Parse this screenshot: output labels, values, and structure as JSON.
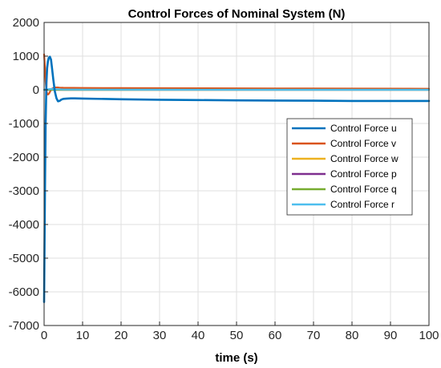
{
  "chart_data": {
    "type": "line",
    "title": "Control Forces of Nominal System (N)",
    "xlabel": "time (s)",
    "ylabel": "",
    "xlim": [
      0,
      100
    ],
    "ylim": [
      -7000,
      2000
    ],
    "xticks": [
      0,
      10,
      20,
      30,
      40,
      50,
      60,
      70,
      80,
      90,
      100
    ],
    "yticks": [
      -7000,
      -6000,
      -5000,
      -4000,
      -3000,
      -2000,
      -1000,
      0,
      1000,
      2000
    ],
    "grid": true,
    "legend_position": "right-center",
    "series": [
      {
        "name": "Control Force u",
        "color": "#0072BD",
        "x": [
          0,
          0.2,
          0.4,
          0.6,
          0.8,
          1.0,
          1.2,
          1.5,
          1.8,
          2.0,
          2.4,
          2.8,
          3.2,
          3.6,
          4.0,
          4.5,
          5.0,
          6.0,
          7.0,
          8.0,
          10,
          20,
          30,
          40,
          50,
          60,
          70,
          80,
          90,
          100
        ],
        "y": [
          -6300,
          -3200,
          -1000,
          200,
          650,
          850,
          950,
          980,
          900,
          700,
          300,
          -50,
          -250,
          -340,
          -330,
          -290,
          -270,
          -260,
          -255,
          -255,
          -260,
          -280,
          -295,
          -305,
          -315,
          -320,
          -325,
          -330,
          -330,
          -330
        ]
      },
      {
        "name": "Control Force v",
        "color": "#D95319",
        "x": [
          0,
          0.2,
          0.4,
          0.6,
          0.8,
          1.0,
          1.3,
          1.6,
          2.0,
          2.5,
          3.0,
          3.5,
          4.0,
          5,
          10,
          20,
          40,
          60,
          80,
          100
        ],
        "y": [
          1050,
          700,
          250,
          -20,
          -110,
          -140,
          -110,
          -40,
          30,
          60,
          70,
          68,
          65,
          60,
          55,
          50,
          45,
          40,
          35,
          30
        ]
      },
      {
        "name": "Control Force w",
        "color": "#EDB120",
        "x": [
          0,
          1,
          2,
          5,
          100
        ],
        "y": [
          0,
          10,
          5,
          0,
          0
        ]
      },
      {
        "name": "Control Force p",
        "color": "#7E2F8E",
        "x": [
          0,
          100
        ],
        "y": [
          0,
          0
        ]
      },
      {
        "name": "Control Force q",
        "color": "#77AC30",
        "x": [
          0,
          100
        ],
        "y": [
          0,
          0
        ]
      },
      {
        "name": "Control Force r",
        "color": "#4DBEEE",
        "x": [
          0,
          1,
          2,
          3,
          5,
          10,
          30,
          60,
          100
        ],
        "y": [
          0,
          15,
          25,
          20,
          10,
          5,
          2,
          0,
          0
        ]
      }
    ]
  }
}
